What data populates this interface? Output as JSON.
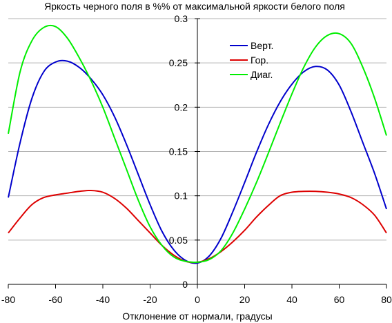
{
  "chart_data": {
    "type": "line",
    "title": "Яркость черного поля в %% от максимальной яркости белого поля",
    "xlabel": "Отклонение от нормали, градусы",
    "ylabel": "",
    "xlim": [
      -80,
      80
    ],
    "ylim": [
      0,
      0.3
    ],
    "x_ticks": [
      "-80",
      "-60",
      "-40",
      "-20",
      "0",
      "20",
      "40",
      "60",
      "80"
    ],
    "y_ticks": [
      "0",
      "0.05",
      "0.1",
      "0.15",
      "0.2",
      "0.25",
      "0.3"
    ],
    "grid": "horizontal",
    "legend_position": "top-right",
    "x": [
      -80,
      -75,
      -70,
      -65,
      -60,
      -55,
      -50,
      -45,
      -40,
      -35,
      -30,
      -25,
      -20,
      -15,
      -10,
      -5,
      0,
      5,
      10,
      15,
      20,
      25,
      30,
      35,
      40,
      45,
      50,
      55,
      60,
      65,
      70,
      75,
      80
    ],
    "series": [
      {
        "name": "Верт.",
        "color": "#0000cc",
        "values": [
          0.098,
          0.16,
          0.21,
          0.24,
          0.251,
          0.252,
          0.245,
          0.232,
          0.214,
          0.189,
          0.158,
          0.124,
          0.09,
          0.06,
          0.039,
          0.027,
          0.024,
          0.032,
          0.052,
          0.082,
          0.115,
          0.149,
          0.18,
          0.206,
          0.226,
          0.24,
          0.246,
          0.242,
          0.225,
          0.195,
          0.16,
          0.125,
          0.085
        ]
      },
      {
        "name": "Гор.",
        "color": "#dd0000",
        "values": [
          0.058,
          0.075,
          0.09,
          0.098,
          0.101,
          0.103,
          0.105,
          0.106,
          0.104,
          0.097,
          0.086,
          0.072,
          0.058,
          0.044,
          0.033,
          0.026,
          0.025,
          0.029,
          0.037,
          0.048,
          0.061,
          0.076,
          0.089,
          0.1,
          0.104,
          0.105,
          0.105,
          0.104,
          0.102,
          0.098,
          0.09,
          0.078,
          0.058
        ]
      },
      {
        "name": "Диаг.",
        "color": "#00ee00",
        "values": [
          0.17,
          0.24,
          0.275,
          0.29,
          0.291,
          0.278,
          0.256,
          0.23,
          0.2,
          0.165,
          0.13,
          0.095,
          0.065,
          0.044,
          0.031,
          0.026,
          0.025,
          0.028,
          0.038,
          0.058,
          0.085,
          0.115,
          0.148,
          0.182,
          0.215,
          0.245,
          0.268,
          0.281,
          0.283,
          0.272,
          0.245,
          0.21,
          0.168
        ]
      }
    ]
  }
}
